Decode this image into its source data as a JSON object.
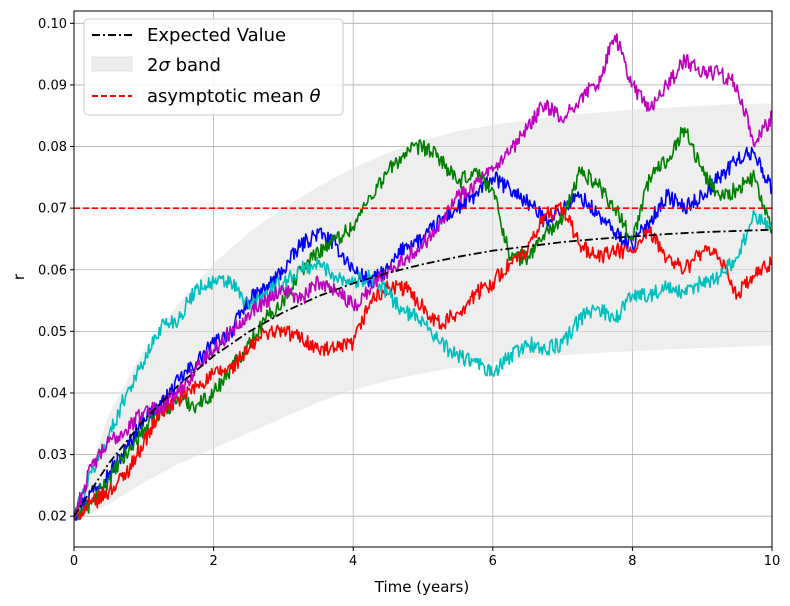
{
  "chart_data": {
    "type": "line",
    "xlabel": "Time (years)",
    "ylabel": "r",
    "xlim": [
      0,
      10
    ],
    "ylim": [
      0.015,
      0.102
    ],
    "x_ticks": [
      0,
      2,
      4,
      6,
      8,
      10
    ],
    "y_ticks": [
      0.02,
      0.03,
      0.04,
      0.05,
      0.06,
      0.07,
      0.08,
      0.09,
      0.1
    ],
    "x_tick_labels": [
      "0",
      "2",
      "4",
      "6",
      "8",
      "10"
    ],
    "y_tick_labels": [
      "0.02",
      "0.03",
      "0.04",
      "0.05",
      "0.06",
      "0.07",
      "0.08",
      "0.09",
      "0.10"
    ],
    "grid": true,
    "legend_position": "top-left",
    "legend": {
      "expected": "Expected Value",
      "band_prefix": "2",
      "band_symbol": "σ",
      "band_suffix": " band",
      "mean_prefix": "asymptotic mean ",
      "mean_symbol": "θ"
    },
    "asymptotic_mean": 0.07,
    "expected_value": {
      "x": [
        0,
        0.5,
        1,
        1.5,
        2,
        2.5,
        3,
        3.5,
        4,
        4.5,
        5,
        5.5,
        6,
        6.5,
        7,
        7.5,
        8,
        8.5,
        9,
        9.5,
        10
      ],
      "y": [
        0.02,
        0.0286,
        0.0356,
        0.0413,
        0.046,
        0.0499,
        0.0531,
        0.0557,
        0.0578,
        0.0595,
        0.0609,
        0.0621,
        0.0631,
        0.0638,
        0.0645,
        0.065,
        0.0654,
        0.0658,
        0.0661,
        0.0663,
        0.0665
      ]
    },
    "band": {
      "x": [
        0,
        0.5,
        1,
        1.5,
        2,
        2.5,
        3,
        3.5,
        4,
        4.5,
        5,
        5.5,
        6,
        6.5,
        7,
        7.5,
        8,
        8.5,
        9,
        9.5,
        10
      ],
      "upper": [
        0.02,
        0.0365,
        0.047,
        0.0545,
        0.061,
        0.066,
        0.07,
        0.0735,
        0.0765,
        0.079,
        0.081,
        0.0825,
        0.0835,
        0.0843,
        0.085,
        0.0855,
        0.086,
        0.0863,
        0.0866,
        0.0869,
        0.087
      ],
      "lower": [
        0.019,
        0.022,
        0.0255,
        0.0285,
        0.031,
        0.0335,
        0.036,
        0.0385,
        0.0405,
        0.042,
        0.0432,
        0.0442,
        0.045,
        0.0456,
        0.0461,
        0.0465,
        0.0468,
        0.0471,
        0.0473,
        0.0475,
        0.0477
      ]
    },
    "series": [
      {
        "color": "#0000ff",
        "x": [
          0,
          0.25,
          0.5,
          0.75,
          1,
          1.25,
          1.5,
          1.75,
          2,
          2.25,
          2.5,
          2.75,
          3,
          3.25,
          3.5,
          3.75,
          4,
          4.25,
          4.5,
          4.75,
          5,
          5.25,
          5.5,
          5.75,
          6,
          6.25,
          6.5,
          6.75,
          7,
          7.25,
          7.5,
          7.75,
          8,
          8.25,
          8.5,
          8.75,
          9,
          9.25,
          9.5,
          9.75,
          10
        ],
        "y": [
          0.02,
          0.024,
          0.027,
          0.031,
          0.036,
          0.038,
          0.042,
          0.045,
          0.048,
          0.05,
          0.055,
          0.057,
          0.06,
          0.064,
          0.066,
          0.064,
          0.06,
          0.058,
          0.06,
          0.064,
          0.065,
          0.068,
          0.07,
          0.072,
          0.075,
          0.073,
          0.071,
          0.068,
          0.07,
          0.072,
          0.069,
          0.066,
          0.064,
          0.068,
          0.072,
          0.07,
          0.072,
          0.075,
          0.078,
          0.079,
          0.073
        ]
      },
      {
        "color": "#008000",
        "x": [
          0,
          0.25,
          0.5,
          0.75,
          1,
          1.25,
          1.5,
          1.75,
          2,
          2.25,
          2.5,
          2.75,
          3,
          3.25,
          3.5,
          3.75,
          4,
          4.25,
          4.5,
          4.75,
          5,
          5.25,
          5.5,
          5.75,
          6,
          6.25,
          6.5,
          6.75,
          7,
          7.25,
          7.5,
          7.75,
          8,
          8.25,
          8.5,
          8.75,
          9,
          9.25,
          9.5,
          9.75,
          10
        ],
        "y": [
          0.02,
          0.022,
          0.026,
          0.03,
          0.034,
          0.037,
          0.039,
          0.038,
          0.04,
          0.044,
          0.048,
          0.052,
          0.055,
          0.06,
          0.063,
          0.065,
          0.067,
          0.072,
          0.076,
          0.079,
          0.08,
          0.078,
          0.074,
          0.076,
          0.073,
          0.062,
          0.062,
          0.066,
          0.068,
          0.076,
          0.074,
          0.07,
          0.065,
          0.075,
          0.078,
          0.083,
          0.076,
          0.072,
          0.073,
          0.075,
          0.066
        ]
      },
      {
        "color": "#ff0000",
        "x": [
          0,
          0.25,
          0.5,
          0.75,
          1,
          1.25,
          1.5,
          1.75,
          2,
          2.25,
          2.5,
          2.75,
          3,
          3.25,
          3.5,
          3.75,
          4,
          4.25,
          4.5,
          4.75,
          5,
          5.25,
          5.5,
          5.75,
          6,
          6.25,
          6.5,
          6.75,
          7,
          7.25,
          7.5,
          7.75,
          8,
          8.25,
          8.5,
          8.75,
          9,
          9.25,
          9.5,
          9.75,
          10
        ],
        "y": [
          0.02,
          0.022,
          0.024,
          0.027,
          0.032,
          0.037,
          0.039,
          0.041,
          0.043,
          0.044,
          0.047,
          0.05,
          0.05,
          0.049,
          0.047,
          0.047,
          0.048,
          0.055,
          0.057,
          0.057,
          0.054,
          0.051,
          0.053,
          0.056,
          0.058,
          0.061,
          0.063,
          0.069,
          0.07,
          0.064,
          0.062,
          0.063,
          0.063,
          0.066,
          0.062,
          0.06,
          0.063,
          0.062,
          0.056,
          0.059,
          0.061
        ]
      },
      {
        "color": "#00bfbf",
        "x": [
          0,
          0.25,
          0.5,
          0.75,
          1,
          1.25,
          1.5,
          1.75,
          2,
          2.25,
          2.5,
          2.75,
          3,
          3.25,
          3.5,
          3.75,
          4,
          4.25,
          4.5,
          4.75,
          5,
          5.25,
          5.5,
          5.75,
          6,
          6.25,
          6.5,
          6.75,
          7,
          7.25,
          7.5,
          7.75,
          8,
          8.25,
          8.5,
          8.75,
          9,
          9.25,
          9.5,
          9.75,
          10
        ],
        "y": [
          0.02,
          0.027,
          0.033,
          0.04,
          0.045,
          0.051,
          0.052,
          0.057,
          0.058,
          0.058,
          0.054,
          0.056,
          0.058,
          0.06,
          0.061,
          0.059,
          0.058,
          0.059,
          0.056,
          0.053,
          0.052,
          0.048,
          0.046,
          0.045,
          0.043,
          0.046,
          0.048,
          0.047,
          0.048,
          0.052,
          0.054,
          0.052,
          0.056,
          0.056,
          0.057,
          0.056,
          0.058,
          0.059,
          0.062,
          0.069,
          0.067
        ]
      },
      {
        "color": "#bf00bf",
        "x": [
          0,
          0.25,
          0.5,
          0.75,
          1,
          1.25,
          1.5,
          1.75,
          2,
          2.25,
          2.5,
          2.75,
          3,
          3.25,
          3.5,
          3.75,
          4,
          4.25,
          4.5,
          4.75,
          5,
          5.25,
          5.5,
          5.75,
          6,
          6.25,
          6.5,
          6.75,
          7,
          7.25,
          7.5,
          7.75,
          8,
          8.25,
          8.5,
          8.75,
          9,
          9.25,
          9.5,
          9.75,
          10
        ],
        "y": [
          0.02,
          0.028,
          0.032,
          0.034,
          0.037,
          0.038,
          0.04,
          0.044,
          0.047,
          0.05,
          0.053,
          0.055,
          0.057,
          0.055,
          0.058,
          0.057,
          0.054,
          0.057,
          0.06,
          0.062,
          0.064,
          0.068,
          0.072,
          0.074,
          0.076,
          0.079,
          0.083,
          0.087,
          0.084,
          0.088,
          0.09,
          0.098,
          0.09,
          0.086,
          0.09,
          0.094,
          0.092,
          0.092,
          0.09,
          0.08,
          0.085
        ]
      }
    ]
  }
}
